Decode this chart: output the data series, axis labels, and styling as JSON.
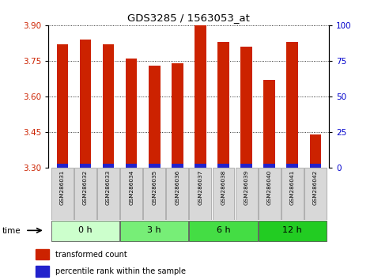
{
  "title": "GDS3285 / 1563053_at",
  "samples": [
    "GSM286031",
    "GSM286032",
    "GSM286033",
    "GSM286034",
    "GSM286035",
    "GSM286036",
    "GSM286037",
    "GSM286038",
    "GSM286039",
    "GSM286040",
    "GSM286041",
    "GSM286042"
  ],
  "transformed_count": [
    3.82,
    3.84,
    3.82,
    3.76,
    3.73,
    3.74,
    3.9,
    3.83,
    3.81,
    3.67,
    3.83,
    3.44
  ],
  "bar_bottom": 3.3,
  "blue_segment": 0.018,
  "ylim": [
    3.3,
    3.9
  ],
  "yticks_left": [
    3.3,
    3.45,
    3.6,
    3.75,
    3.9
  ],
  "yticks_right": [
    0,
    25,
    50,
    75,
    100
  ],
  "time_groups": [
    {
      "label": "0 h",
      "start": 0,
      "end": 2,
      "color": "#ddffdd"
    },
    {
      "label": "3 h",
      "start": 3,
      "end": 5,
      "color": "#88ee88"
    },
    {
      "label": "6 h",
      "start": 6,
      "end": 8,
      "color": "#44dd44"
    },
    {
      "label": "12 h",
      "start": 9,
      "end": 11,
      "color": "#22cc22"
    }
  ],
  "bar_color": "#cc2200",
  "blue_color": "#2222cc",
  "bar_width": 0.5,
  "grid_color": "#000000",
  "bg_color": "#ffffff",
  "tick_color_left": "#cc2200",
  "tick_color_right": "#0000cc",
  "label_area_color": "#d8d8d8",
  "time_colors": [
    "#ccffcc",
    "#77ee77",
    "#44dd44",
    "#22cc22"
  ],
  "time_labels": [
    "0 h",
    "3 h",
    "6 h",
    "12 h"
  ],
  "time_starts_idx": [
    0,
    3,
    6,
    9
  ],
  "time_ends_idx": [
    3,
    6,
    9,
    12
  ]
}
